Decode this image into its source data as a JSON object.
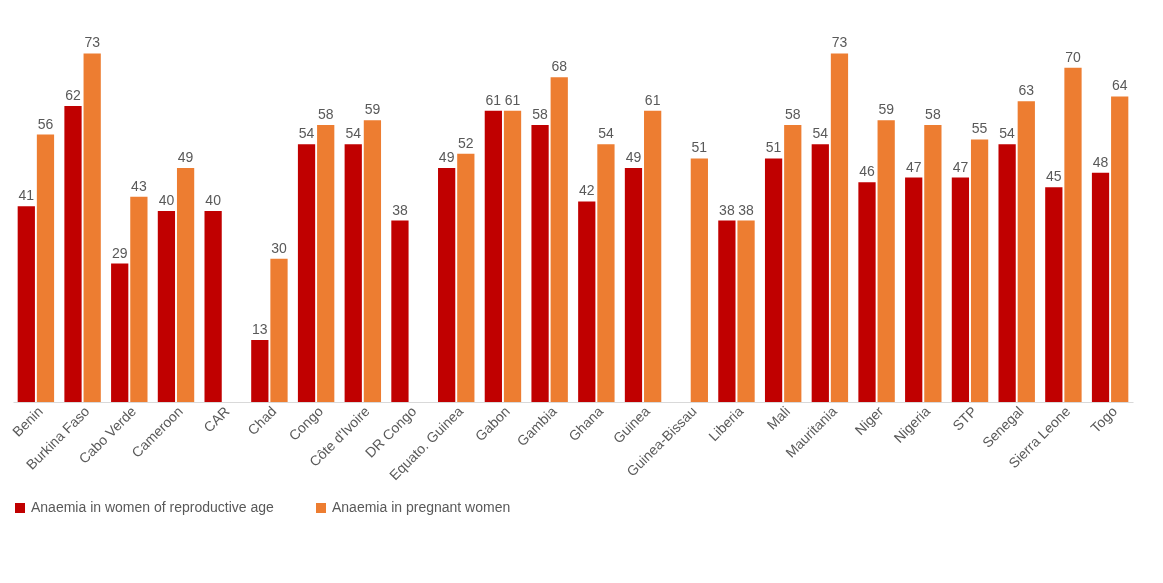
{
  "chart_data": {
    "type": "bar",
    "categories": [
      "Benin",
      "Burkina Faso",
      "Cabo Verde",
      "Cameroon",
      "CAR",
      "Chad",
      "Congo",
      "Côte d'Ivoire",
      "DR Congo",
      "Equato. Guinea",
      "Gabon",
      "Gambia",
      "Ghana",
      "Guinea",
      "Guinea-Bissau",
      "Liberia",
      "Mali",
      "Mauritania",
      "Niger",
      "Nigeria",
      "STP",
      "Senegal",
      "Sierra Leone",
      "Togo"
    ],
    "series": [
      {
        "name": "Anaemia in women of reproductive age",
        "color": "#c00000",
        "values": [
          41,
          62,
          29,
          40,
          40,
          13,
          54,
          54,
          38,
          49,
          61,
          58,
          42,
          49,
          null,
          38,
          51,
          54,
          46,
          47,
          47,
          54,
          45,
          48
        ]
      },
      {
        "name": "Anaemia in pregnant women",
        "color": "#ed7d31",
        "values": [
          56,
          73,
          43,
          49,
          null,
          30,
          58,
          59,
          null,
          52,
          61,
          68,
          54,
          61,
          51,
          38,
          58,
          73,
          59,
          58,
          55,
          63,
          70,
          64
        ]
      }
    ],
    "data_labels": true,
    "legend": "bottom",
    "grid": false
  }
}
